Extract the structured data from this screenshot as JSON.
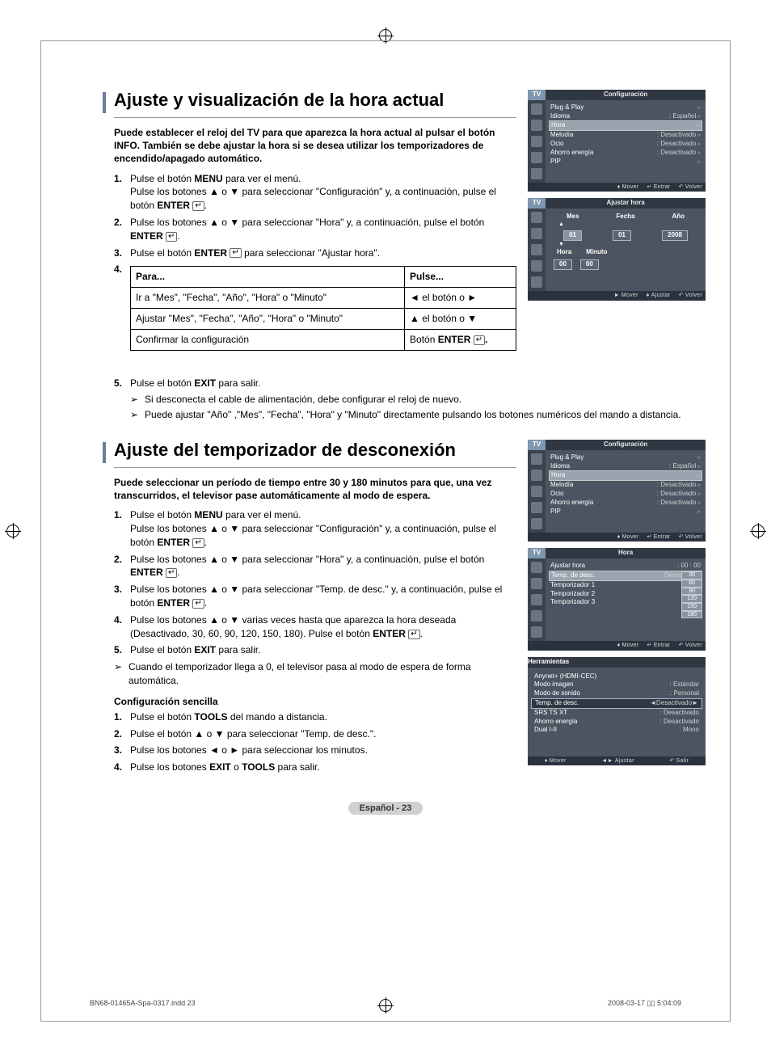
{
  "page": {
    "lang_label": "Español - 23",
    "footer_left": "BN68-01465A-Spa-0317.indd   23",
    "footer_right": "2008-03-17   ▯▯ 5:04:09"
  },
  "section1": {
    "title": "Ajuste y visualización de la hora actual",
    "intro": "Puede establecer el reloj del TV para que aparezca la hora actual al pulsar el botón INFO. También se debe ajustar la hora si se desea utilizar los temporizadores de encendido/apagado automático.",
    "steps": {
      "s1a": "Pulse el botón ",
      "s1b": " para ver el menú.",
      "s1c": "Pulse los botones ▲ o ▼ para seleccionar \"Configuración\" y, a continuación, pulse el botón ",
      "menu": "MENU",
      "enter": "ENTER",
      "s2": "Pulse los botones ▲ o ▼ para seleccionar \"Hora\" y, a continuación, pulse el botón ",
      "s3a": "Pulse el botón ",
      "s3b": " para seleccionar \"Ajustar hora\"."
    },
    "table": {
      "h1": "Para...",
      "h2": "Pulse...",
      "r1c1": "Ir a \"Mes\", \"Fecha\", \"Año\", \"Hora\" o \"Minuto\"",
      "r1c2": "◄ el botón o ►",
      "r2c1": "Ajustar \"Mes\", \"Fecha\", \"Año\", \"Hora\" o \"Minuto\"",
      "r2c2": "▲ el botón o ▼",
      "r3c1": "Confirmar la configuración",
      "r3c2a": "Botón ",
      "r3c2b": "."
    },
    "step5a": "Pulse el botón ",
    "step5b": " para salir.",
    "exit": "EXIT",
    "note1": "Si desconecta el cable de alimentación, debe configurar el reloj de nuevo.",
    "note2": "Puede ajustar \"Año\" ,\"Mes\", \"Fecha\", \"Hora\" y \"Minuto\" directamente pulsando los botones numéricos del mando a distancia."
  },
  "section2": {
    "title": "Ajuste del temporizador de desconexión",
    "intro": "Puede seleccionar un período de tiempo entre 30 y 180 minutos para que, una vez transcurridos, el televisor pase automáticamente al modo de espera.",
    "s1a": "Pulse el botón ",
    "s1b": " para ver el menú.",
    "s1c": "Pulse los botones ▲ o ▼ para seleccionar \"Configuración\" y, a continuación, pulse el botón ",
    "s2": "Pulse los botones ▲ o ▼ para seleccionar \"Hora\" y, a continuación, pulse el botón ",
    "s3": "Pulse los botones ▲ o ▼ para seleccionar \"Temp. de desc.\" y, a continuación, pulse el botón ",
    "s4": "Pulse los botones ▲ o ▼ varias veces hasta que aparezca la hora deseada (Desactivado, 30, 60, 90, 120, 150, 180). Pulse el botón ",
    "s5a": "Pulse el botón ",
    "s5b": " para salir.",
    "menu": "MENU",
    "enter": "ENTER",
    "exit": "EXIT",
    "note": "Cuando el temporizador llega a 0, el televisor pasa al modo de espera de forma automática.",
    "easy_title": "Configuración sencilla",
    "e1a": "Pulse el botón ",
    "e1b": " del mando a distancia.",
    "tools": "TOOLS",
    "e2": "Pulse el botón ▲ o ▼ para seleccionar \"Temp. de desc.\".",
    "e3": "Pulse los botones ◄ o ► para seleccionar los minutos.",
    "e4a": "Pulse los botones ",
    "e4b": " o ",
    "e4c": " para salir."
  },
  "osd_config": {
    "tv": "TV",
    "title": "Configuración",
    "rows": [
      {
        "k": "Plug & Play",
        "v": ""
      },
      {
        "k": "Idioma",
        "v": ": Español"
      },
      {
        "k": "Hora",
        "v": "",
        "hi": true
      },
      {
        "k": "Melodía",
        "v": ": Desactivado"
      },
      {
        "k": "Ocio",
        "v": ": Desactivado"
      },
      {
        "k": "Ahorro energía",
        "v": ": Desactivado"
      },
      {
        "k": "PIP",
        "v": ""
      }
    ],
    "footer": {
      "a": "Mover",
      "b": "Entrar",
      "c": "Volver"
    }
  },
  "osd_ajustar": {
    "tv": "TV",
    "title": "Ajustar hora",
    "cols1": [
      "Mes",
      "Fecha",
      "Año"
    ],
    "vals1": [
      "01",
      "01",
      "2008"
    ],
    "cols2": [
      "Hora",
      "Minuto"
    ],
    "vals2": [
      "00",
      "00"
    ],
    "footer": {
      "a": "Mover",
      "b": "Ajustar",
      "c": "Volver"
    }
  },
  "osd_hora": {
    "tv": "TV",
    "title": "Hora",
    "rows": [
      {
        "k": "Ajustar hora",
        "v": ": 00 : 00"
      },
      {
        "k": "Temp. de desc.",
        "v": "Desactivado",
        "hi": true
      },
      {
        "k": "Temporizador 1",
        "v": ":"
      },
      {
        "k": "Temporizador 2",
        "v": ":"
      },
      {
        "k": "Temporizador 3",
        "v": ":"
      }
    ],
    "opts": [
      "30",
      "60",
      "90",
      "120",
      "150",
      "180"
    ],
    "footer": {
      "a": "Mover",
      "b": "Entrar",
      "c": "Volver"
    }
  },
  "osd_tools": {
    "title": "Herramientas",
    "rows": [
      {
        "k": "Anynet+ (HDMI-CEC)",
        "v": ""
      },
      {
        "k": "Modo imagen",
        "v": ": Estándar"
      },
      {
        "k": "Modo de sonido",
        "v": ": Personal"
      },
      {
        "k": "Temp. de desc.",
        "v": "◄Desactivado►",
        "sel": true
      },
      {
        "k": "SRS TS XT",
        "v": ": Desactivado"
      },
      {
        "k": "Ahorro energía",
        "v": ": Desactivado"
      },
      {
        "k": "Dual I-II",
        "v": ": Mono"
      }
    ],
    "footer": {
      "a": "Mover",
      "b": "Ajustar",
      "c": "Salir"
    }
  }
}
